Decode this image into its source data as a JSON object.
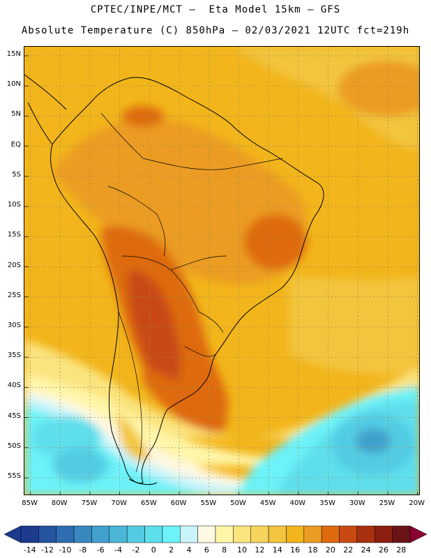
{
  "header": {
    "line1": "CPTEC/INPE/MCT –  Eta Model 15km – GFS",
    "line2": "Absolute Temperature (C) 850hPa – 02/03/2021 12UTC fct=219h"
  },
  "map": {
    "lat_labels": [
      "15N",
      "10N",
      "5N",
      "EQ",
      "5S",
      "10S",
      "15S",
      "20S",
      "25S",
      "30S",
      "35S",
      "40S",
      "45S",
      "50S",
      "55S"
    ],
    "lon_labels": [
      "85W",
      "80W",
      "75W",
      "70W",
      "65W",
      "60W",
      "55W",
      "50W",
      "45W",
      "40W",
      "35W",
      "30W",
      "25W",
      "20W"
    ],
    "lat_range": [
      -58,
      16.5
    ],
    "lon_range": [
      -86,
      -19.5
    ]
  },
  "colorbar": {
    "labels": [
      "-14",
      "-12",
      "-10",
      "-8",
      "-6",
      "-4",
      "-2",
      "0",
      "2",
      "4",
      "6",
      "8",
      "10",
      "12",
      "14",
      "16",
      "18",
      "20",
      "22",
      "24",
      "26",
      "28"
    ],
    "colors": [
      "#1c3a8e",
      "#2554a0",
      "#2e6db0",
      "#3887bf",
      "#41a0cc",
      "#4ab7d8",
      "#53cce3",
      "#5edfec",
      "#6cf2f8",
      "#c9f4fb",
      "#fff8e2",
      "#fff6a8",
      "#fbe37e",
      "#f6d35d",
      "#f3c53e",
      "#f2b51b",
      "#eb9c22",
      "#de6a10",
      "#c84a12",
      "#a8320f",
      "#8c1f10",
      "#6b1418"
    ],
    "unit": "C"
  }
}
